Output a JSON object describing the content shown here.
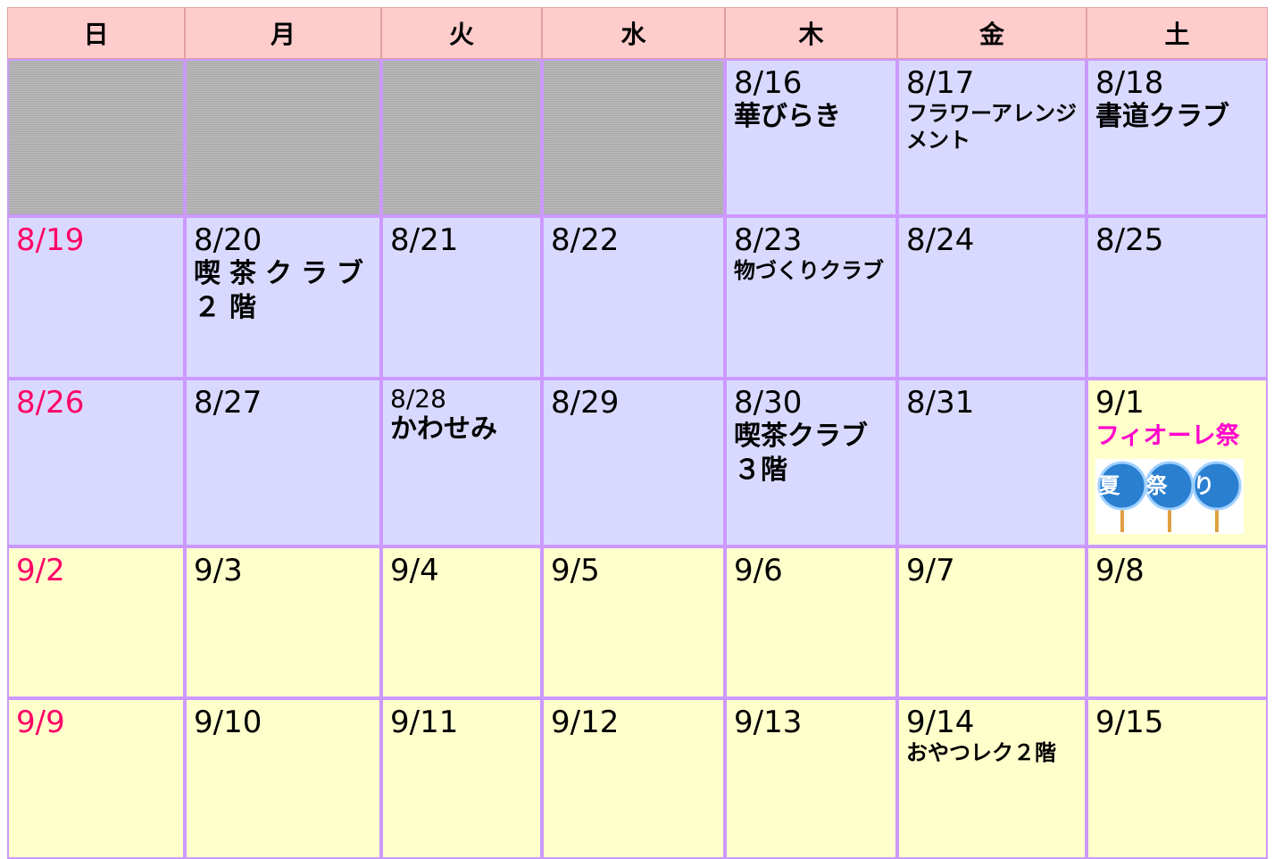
{
  "header": {
    "days": [
      "日",
      "月",
      "火",
      "水",
      "木",
      "金",
      "土"
    ]
  },
  "weeks": [
    [
      null,
      null,
      null,
      null,
      {
        "date": "8/16",
        "events": [
          "華びらき"
        ]
      },
      {
        "date": "8/17",
        "events": [
          "フラワーアレンジメント"
        ]
      },
      {
        "date": "8/18",
        "events": [
          "書道クラブ"
        ]
      }
    ],
    [
      {
        "date": "8/19"
      },
      {
        "date": "8/20",
        "events": [
          "喫茶クラブ２階"
        ]
      },
      {
        "date": "8/21"
      },
      {
        "date": "8/22"
      },
      {
        "date": "8/23",
        "events": [
          "物づくりクラブ"
        ]
      },
      {
        "date": "8/24"
      },
      {
        "date": "8/25"
      }
    ],
    [
      {
        "date": "8/26"
      },
      {
        "date": "8/27"
      },
      {
        "date": "8/28",
        "events": [
          "かわせみ"
        ]
      },
      {
        "date": "8/29"
      },
      {
        "date": "8/30",
        "events": [
          "喫茶クラブ３階"
        ]
      },
      {
        "date": "8/31"
      },
      {
        "date": "9/1",
        "events": [
          "フィオーレ祭"
        ],
        "image_text": "夏祭り"
      }
    ],
    [
      {
        "date": "9/2"
      },
      {
        "date": "9/3"
      },
      {
        "date": "9/4"
      },
      {
        "date": "9/5"
      },
      {
        "date": "9/6"
      },
      {
        "date": "9/7"
      },
      {
        "date": "9/8"
      }
    ],
    [
      {
        "date": "9/9"
      },
      {
        "date": "9/10"
      },
      {
        "date": "9/11"
      },
      {
        "date": "9/12"
      },
      {
        "date": "9/13"
      },
      {
        "date": "9/14",
        "events": [
          "おやつレク２階"
        ]
      },
      {
        "date": "9/15"
      }
    ]
  ]
}
